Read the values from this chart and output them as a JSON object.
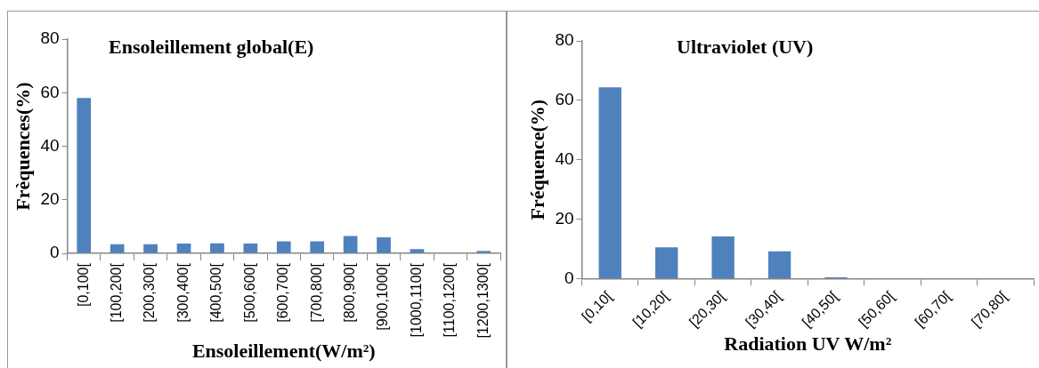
{
  "chart_data": [
    {
      "type": "bar",
      "title": "Ensoleillement global(E)",
      "xlabel": "Ensoleillement(W/m²)",
      "ylabel": "Frèquences(%)",
      "categories": [
        "[0,100[",
        "[100,200[",
        "[200,300[",
        "[300,400[",
        "[400,500[",
        "[500,600[",
        "[600,700[",
        "[700,800[",
        "[800,900[",
        "[900,1000[",
        "[1000,1100[",
        "[1100,1200[",
        "[1200,1300["
      ],
      "values": [
        58.0,
        3.4,
        3.4,
        3.7,
        3.8,
        3.7,
        4.5,
        4.5,
        6.5,
        6.0,
        1.6,
        null,
        0.9
      ],
      "color": "#4f81bd",
      "ylim": [
        0,
        80
      ],
      "yticks": [
        0,
        20,
        40,
        60,
        80
      ],
      "grid": false,
      "legend": false
    },
    {
      "type": "bar",
      "title": "Ultraviolet (UV)",
      "xlabel": "Radiation UV W/m²",
      "ylabel": "Fréquence(%)",
      "categories": [
        "[0,10[",
        "[10,20[",
        "[20,30[",
        "[30,40[",
        "[40,50[",
        "[50,60[",
        "[60,70[",
        "[70,80["
      ],
      "values": [
        64.4,
        10.5,
        14.2,
        9.2,
        0.4,
        0,
        0,
        0
      ],
      "color": "#4f81bd",
      "ylim": [
        0,
        80
      ],
      "yticks": [
        0,
        20,
        40,
        60,
        80
      ],
      "grid": false,
      "legend": false
    }
  ]
}
